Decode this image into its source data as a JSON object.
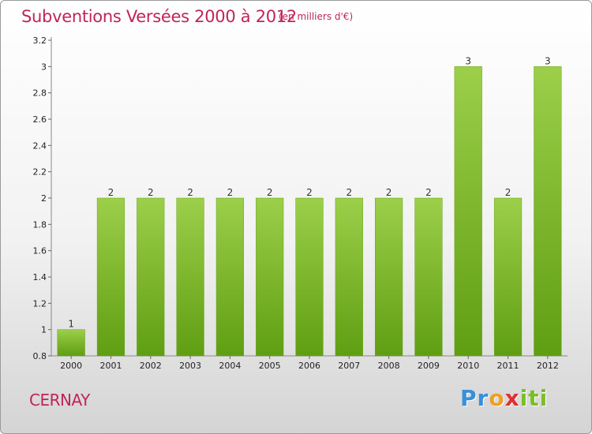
{
  "header": {
    "title": "Subventions Versées 2000 à 2012",
    "unit": "(en milliers d'€)"
  },
  "footer": {
    "place": "CERNAY",
    "logo": [
      "P",
      "r",
      "o",
      "x",
      "i",
      "t",
      "i"
    ]
  },
  "colors": {
    "title": "#c0245b",
    "bar_top": "#9ccf4a",
    "bar_bottom": "#5f9e12",
    "logo": [
      "#3a8fd8",
      "#3a8fd8",
      "#f0a020",
      "#e03030",
      "#7cbd2a",
      "#7cbd2a",
      "#7cbd2a"
    ]
  },
  "chart_data": {
    "type": "bar",
    "title": "Subventions Versées 2000 à 2012",
    "categories": [
      "2000",
      "2001",
      "2002",
      "2003",
      "2004",
      "2005",
      "2006",
      "2007",
      "2008",
      "2009",
      "2010",
      "2011",
      "2012"
    ],
    "values": [
      1,
      2,
      2,
      2,
      2,
      2,
      2,
      2,
      2,
      2,
      3,
      2,
      3
    ],
    "value_labels": [
      "1",
      "2",
      "2",
      "2",
      "2",
      "2",
      "2",
      "2",
      "2",
      "2",
      "3",
      "2",
      "3"
    ],
    "yticks": [
      "0.8",
      "1",
      "1.2",
      "1.4",
      "1.6",
      "1.8",
      "2",
      "2.2",
      "2.4",
      "2.6",
      "2.8",
      "3",
      "3.2"
    ],
    "ylim": [
      0.8,
      3.2
    ],
    "grid": false
  }
}
